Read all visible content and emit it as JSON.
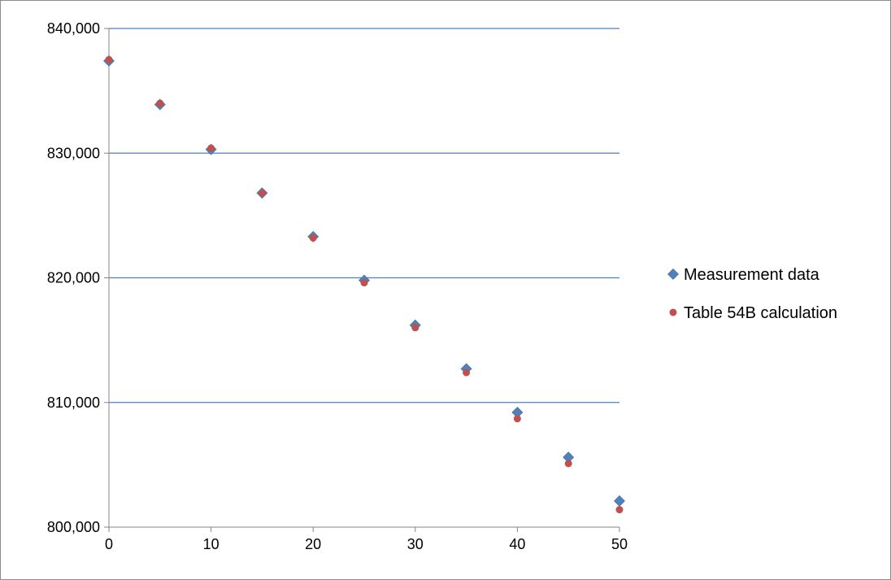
{
  "chart_data": {
    "type": "scatter",
    "title": "",
    "xlabel": "",
    "ylabel": "",
    "xlim": [
      0,
      50
    ],
    "ylim": [
      800000,
      840000
    ],
    "x_ticks": [
      0,
      10,
      20,
      30,
      40,
      50
    ],
    "x_tick_labels": [
      "0",
      "10",
      "20",
      "30",
      "40",
      "50"
    ],
    "y_ticks": [
      800000,
      810000,
      820000,
      830000,
      840000
    ],
    "y_tick_labels": [
      "800,000",
      "810,000",
      "820,000",
      "830,000",
      "840,000"
    ],
    "grid": "horizontal",
    "legend_position": "right",
    "series": [
      {
        "name": "Measurement data",
        "marker": "diamond",
        "color": "#4f81bd",
        "points": [
          {
            "x": 0,
            "y": 837400
          },
          {
            "x": 5,
            "y": 833900
          },
          {
            "x": 10,
            "y": 830300
          },
          {
            "x": 15,
            "y": 826800
          },
          {
            "x": 20,
            "y": 823300
          },
          {
            "x": 25,
            "y": 819800
          },
          {
            "x": 30,
            "y": 816200
          },
          {
            "x": 35,
            "y": 812700
          },
          {
            "x": 40,
            "y": 809200
          },
          {
            "x": 45,
            "y": 805600
          },
          {
            "x": 50,
            "y": 802100
          }
        ]
      },
      {
        "name": "Table 54B calculation",
        "marker": "circle",
        "color": "#c0504d",
        "points": [
          {
            "x": 0,
            "y": 837500
          },
          {
            "x": 5,
            "y": 834000
          },
          {
            "x": 10,
            "y": 830400
          },
          {
            "x": 15,
            "y": 826800
          },
          {
            "x": 20,
            "y": 823200
          },
          {
            "x": 25,
            "y": 819600
          },
          {
            "x": 30,
            "y": 816000
          },
          {
            "x": 35,
            "y": 812400
          },
          {
            "x": 40,
            "y": 808700
          },
          {
            "x": 45,
            "y": 805100
          },
          {
            "x": 50,
            "y": 801400
          }
        ]
      }
    ],
    "colors": {
      "gridline": "#4f81bd",
      "axis": "#868686",
      "frame_border": "#8c8c8c"
    }
  }
}
